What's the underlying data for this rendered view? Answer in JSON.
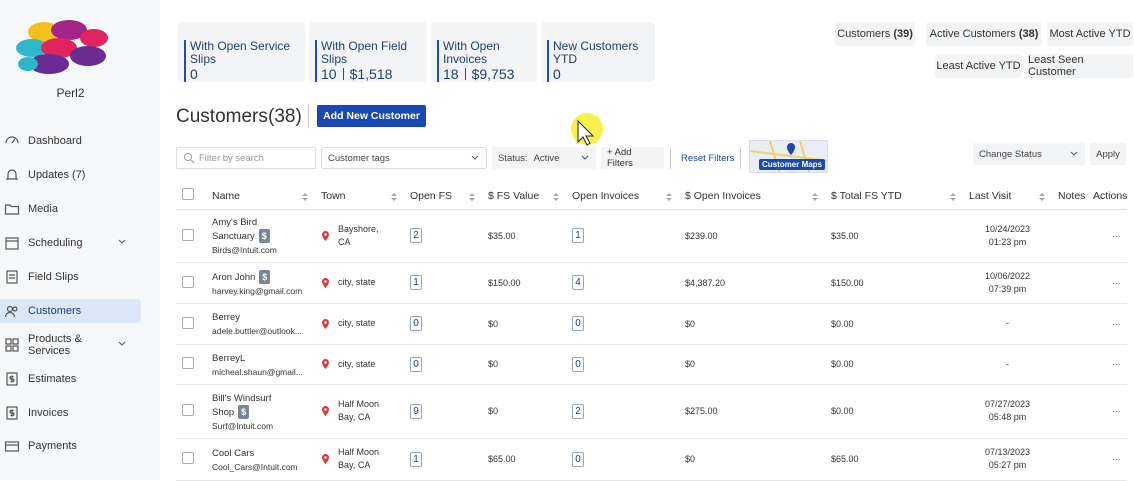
{
  "sidebar": {
    "brand": "Perl2",
    "nav": [
      {
        "label": "Dashboard",
        "icon": "dash"
      },
      {
        "label": "Updates (7)",
        "icon": "bell"
      },
      {
        "label": "Media",
        "icon": "folder"
      },
      {
        "label": "Scheduling",
        "icon": "cal",
        "chevron": true
      },
      {
        "label": "Field Slips",
        "icon": "doc"
      },
      {
        "label": "Customers",
        "icon": "users",
        "active": true
      },
      {
        "label": "Products & Services",
        "icon": "grid",
        "chevron": true
      },
      {
        "label": "Estimates",
        "icon": "dollar"
      },
      {
        "label": "Invoices",
        "icon": "dollar"
      },
      {
        "label": "Payments",
        "icon": "card"
      }
    ]
  },
  "stats": [
    {
      "label": "With Open Service Slips",
      "values": [
        "0"
      ]
    },
    {
      "label": "With Open Field Slips",
      "values": [
        "10",
        "$1,518"
      ]
    },
    {
      "label": "With Open Invoices",
      "values": [
        "18",
        "$9,753"
      ]
    },
    {
      "label": "New Customers YTD",
      "values": [
        "0"
      ]
    }
  ],
  "tabs": [
    {
      "label": "Customers",
      "count": "(39)"
    },
    {
      "label": "Active Customers",
      "count": "(38)"
    },
    {
      "label": "Most Active YTD"
    },
    {
      "label": "Least Active YTD"
    },
    {
      "label": "Least Seen Customer"
    }
  ],
  "header": {
    "title": "Customers",
    "count": "(38)",
    "button": "Add New Customer"
  },
  "filters": {
    "search": "Filter by search",
    "tags": "Customer tags",
    "status_label": "Status:",
    "status": "Active",
    "add": "+ Add Filters",
    "reset": "Reset Filters",
    "map": "Customer Maps",
    "change": "Change Status",
    "apply": "Apply"
  },
  "table": {
    "columns": [
      "Name",
      "Town",
      "Open FS",
      "$ FS Value",
      "Open Invoices",
      "$ Open Invoices",
      "$ Total FS YTD",
      "Last Visit",
      "Notes",
      "Actions"
    ],
    "rows": [
      {
        "name": "Amy's Bird Sanctuary",
        "badge": "$",
        "email": "Birds@Intuit.com",
        "town": "Bayshore, CA",
        "open_fs": "2",
        "fs_value": "$35.00",
        "open_invoices": "1",
        "open_invoice_value": "$239.00",
        "total_fs_ytd": "$35.00",
        "last_visit": "10/24/2023",
        "time": "01:23 pm",
        "actions": "···"
      },
      {
        "name": "Aron John",
        "badge": "$",
        "email": "harvey.king@gmail.com",
        "town": "city, state",
        "open_fs": "1",
        "fs_value": "$150.00",
        "open_invoices": "4",
        "open_invoice_value": "$4,387.20",
        "total_fs_ytd": "$150.00",
        "last_visit": "10/06/2022",
        "time": "07:39 pm",
        "actions": "···"
      },
      {
        "name": "Berrey",
        "email": "adele.buttler@outlook...",
        "town": "city, state",
        "open_fs": "0",
        "fs_value": "$0",
        "open_invoices": "0",
        "open_invoice_value": "$0",
        "total_fs_ytd": "$0.00",
        "last_visit": "-",
        "actions": "···"
      },
      {
        "name": "BerreyL",
        "email": "micheal.shaun@gmail...",
        "town": "city, state",
        "open_fs": "0",
        "fs_value": "$0",
        "open_invoices": "0",
        "open_invoice_value": "$0",
        "total_fs_ytd": "$0.00",
        "last_visit": "-",
        "actions": "···"
      },
      {
        "name": "Bill's Windsurf Shop",
        "badge": "$",
        "email": "Surf@Intuit.com",
        "town": "Half Moon Bay, CA",
        "open_fs": "9",
        "fs_value": "$0",
        "open_invoices": "2",
        "open_invoice_value": "$275.00",
        "total_fs_ytd": "$0.00",
        "last_visit": "07/27/2023",
        "time": "05:48 pm",
        "actions": "···"
      },
      {
        "name": "Cool Cars",
        "email": "Cool_Cars@Intuit.com",
        "town": "Half Moon Bay, CA",
        "open_fs": "1",
        "fs_value": "$65.00",
        "open_invoices": "0",
        "open_invoice_value": "$0",
        "total_fs_ytd": "$65.00",
        "last_visit": "07/13/2023",
        "time": "05:27 pm",
        "actions": "···"
      }
    ]
  }
}
